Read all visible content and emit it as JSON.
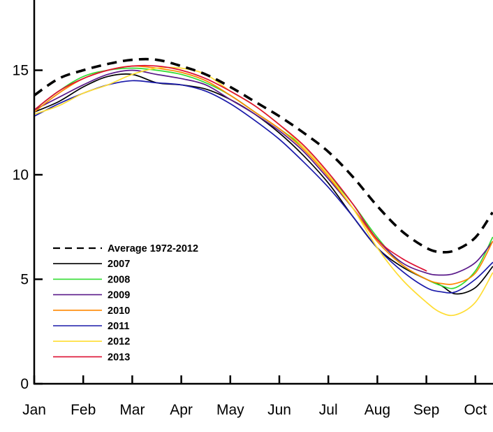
{
  "chart_data": {
    "type": "line",
    "title": "",
    "xlabel": "",
    "ylabel": "",
    "x_unit": "month index (0 = start of Jan)",
    "xlim": [
      0,
      9.35
    ],
    "ylim": [
      0,
      19
    ],
    "x_ticks": [
      {
        "pos": 0,
        "label": "Jan"
      },
      {
        "pos": 1,
        "label": "Feb"
      },
      {
        "pos": 2,
        "label": "Mar"
      },
      {
        "pos": 3,
        "label": "Apr"
      },
      {
        "pos": 4,
        "label": "May"
      },
      {
        "pos": 5,
        "label": "Jun"
      },
      {
        "pos": 6,
        "label": "Jul"
      },
      {
        "pos": 7,
        "label": "Aug"
      },
      {
        "pos": 8,
        "label": "Sep"
      },
      {
        "pos": 9,
        "label": "Oct"
      }
    ],
    "y_ticks": [
      {
        "pos": 0,
        "label": "0"
      },
      {
        "pos": 5,
        "label": "5"
      },
      {
        "pos": 10,
        "label": "10"
      },
      {
        "pos": 15,
        "label": "15"
      }
    ],
    "grid": false,
    "legend": {
      "position": "left-middle"
    },
    "series": [
      {
        "name": "Average 1972-2012",
        "color": "#000000",
        "style": "dashed",
        "x": [
          0,
          0.5,
          1,
          1.5,
          2,
          2.5,
          3,
          3.5,
          4,
          4.5,
          5,
          5.5,
          6,
          6.5,
          7,
          7.5,
          8,
          8.3,
          8.6,
          9,
          9.35
        ],
        "y": [
          13.8,
          14.6,
          15.0,
          15.3,
          15.5,
          15.5,
          15.2,
          14.8,
          14.2,
          13.5,
          12.8,
          12.0,
          11.1,
          9.9,
          8.5,
          7.3,
          6.5,
          6.3,
          6.4,
          7.0,
          8.2
        ]
      },
      {
        "name": "2007",
        "color": "#000000",
        "style": "solid",
        "x": [
          0,
          0.5,
          1,
          1.5,
          2,
          2.5,
          3,
          3.5,
          4,
          4.5,
          5,
          5.5,
          6,
          6.5,
          7,
          7.5,
          8,
          8.3,
          8.6,
          9,
          9.35
        ],
        "y": [
          13.0,
          13.5,
          14.2,
          14.7,
          14.8,
          14.4,
          14.3,
          14.1,
          13.6,
          12.9,
          12.0,
          10.9,
          9.6,
          8.0,
          6.5,
          5.6,
          5.0,
          4.7,
          4.3,
          4.6,
          5.6
        ]
      },
      {
        "name": "2008",
        "color": "#33dd33",
        "style": "solid",
        "x": [
          0,
          0.5,
          1,
          1.5,
          2,
          2.5,
          3,
          3.5,
          4,
          4.5,
          5,
          5.5,
          6,
          6.5,
          7,
          7.5,
          8,
          8.3,
          8.6,
          9,
          9.35
        ],
        "y": [
          13.1,
          14.0,
          14.7,
          15.0,
          15.1,
          15.0,
          14.8,
          14.4,
          13.8,
          13.0,
          12.2,
          11.3,
          10.0,
          8.6,
          7.0,
          5.7,
          5.0,
          4.7,
          4.6,
          5.4,
          7.0
        ]
      },
      {
        "name": "2009",
        "color": "#5a1a8a",
        "style": "solid",
        "x": [
          0,
          0.5,
          1,
          1.5,
          2,
          2.5,
          3,
          3.5,
          4,
          4.5,
          5,
          5.5,
          6,
          6.5,
          7,
          7.5,
          8,
          8.3,
          8.6,
          9,
          9.35
        ],
        "y": [
          13.1,
          13.7,
          14.3,
          14.8,
          15.0,
          14.8,
          14.6,
          14.3,
          13.6,
          12.9,
          12.1,
          11.1,
          9.8,
          8.4,
          6.9,
          5.8,
          5.3,
          5.2,
          5.3,
          5.8,
          6.8
        ]
      },
      {
        "name": "2010",
        "color": "#ff8800",
        "style": "solid",
        "x": [
          0,
          0.5,
          1,
          1.5,
          2,
          2.5,
          3,
          3.5,
          4,
          4.5,
          5,
          5.5,
          6,
          6.5,
          7,
          7.5,
          8,
          8.3,
          8.6,
          9,
          9.35
        ],
        "y": [
          13.0,
          13.9,
          14.6,
          15.0,
          15.2,
          15.1,
          14.9,
          14.5,
          13.8,
          13.0,
          12.2,
          11.2,
          9.9,
          8.4,
          6.8,
          5.7,
          5.0,
          4.8,
          4.8,
          5.3,
          6.8
        ]
      },
      {
        "name": "2011",
        "color": "#1a1aaa",
        "style": "solid",
        "x": [
          0,
          0.5,
          1,
          1.5,
          2,
          2.5,
          3,
          3.5,
          4,
          4.5,
          5,
          5.5,
          6,
          6.5,
          7,
          7.5,
          8,
          8.3,
          8.6,
          9,
          9.35
        ],
        "y": [
          12.8,
          13.4,
          13.9,
          14.3,
          14.5,
          14.4,
          14.3,
          14.0,
          13.4,
          12.6,
          11.7,
          10.6,
          9.4,
          8.0,
          6.5,
          5.4,
          4.6,
          4.4,
          4.4,
          5.0,
          5.8
        ]
      },
      {
        "name": "2012",
        "color": "#ffdd33",
        "style": "solid",
        "x": [
          0,
          0.5,
          1,
          1.5,
          2,
          2.5,
          3,
          3.5,
          4,
          4.5,
          5,
          5.5,
          6,
          6.5,
          7,
          7.5,
          8,
          8.3,
          8.6,
          9,
          9.35
        ],
        "y": [
          12.9,
          13.3,
          13.9,
          14.3,
          14.8,
          15.1,
          15.1,
          14.8,
          14.0,
          13.3,
          12.4,
          11.3,
          10.0,
          8.4,
          6.5,
          5.0,
          3.9,
          3.4,
          3.3,
          3.9,
          5.3
        ]
      },
      {
        "name": "2013",
        "color": "#dd1133",
        "style": "solid",
        "x": [
          0,
          0.5,
          1,
          1.5,
          2,
          2.5,
          3,
          3.5,
          4,
          4.5,
          5,
          5.5,
          6,
          6.5,
          7,
          7.5,
          8
        ],
        "y": [
          13.1,
          14.0,
          14.6,
          15.0,
          15.2,
          15.2,
          15.0,
          14.6,
          14.0,
          13.3,
          12.4,
          11.4,
          10.1,
          8.6,
          6.9,
          6.0,
          5.4
        ]
      }
    ]
  }
}
